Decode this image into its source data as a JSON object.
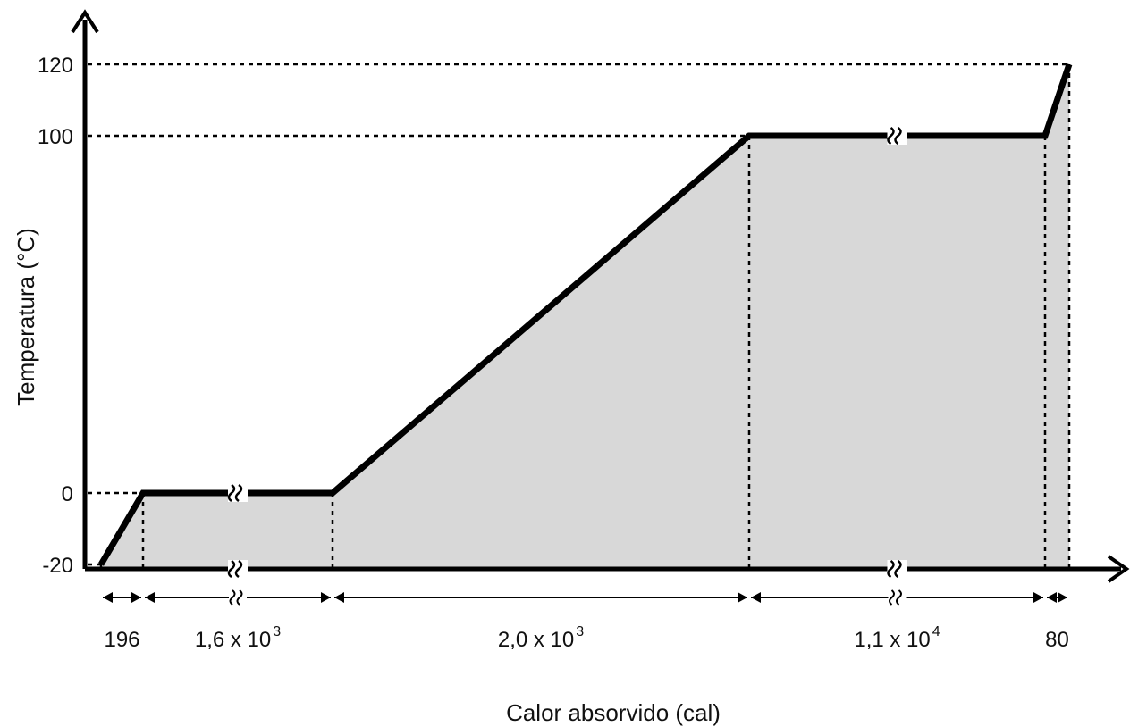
{
  "chart_data": {
    "type": "line",
    "title": "",
    "xlabel": "Calor absorvido (cal)",
    "ylabel": "Temperatura (°C)",
    "ylim": [
      -20,
      120
    ],
    "y_ticks": [
      {
        "value": 120,
        "label": "120"
      },
      {
        "value": 100,
        "label": "100"
      },
      {
        "value": 0,
        "label": "0"
      },
      {
        "value": -20,
        "label": "-20"
      }
    ],
    "segments": [
      {
        "label_base": "196",
        "label_exp": "",
        "heat_cal": 196,
        "t_start": -20,
        "t_end": 0,
        "axis_break": false
      },
      {
        "label_base": "1,6 x 10",
        "label_exp": "3",
        "heat_cal": 1600,
        "t_start": 0,
        "t_end": 0,
        "axis_break": true
      },
      {
        "label_base": "2,0 x 10",
        "label_exp": "3",
        "heat_cal": 2000,
        "t_start": 0,
        "t_end": 100,
        "axis_break": false
      },
      {
        "label_base": "1,1 x 10",
        "label_exp": "4",
        "heat_cal": 11000,
        "t_start": 100,
        "t_end": 100,
        "axis_break": true
      },
      {
        "label_base": "80",
        "label_exp": "",
        "heat_cal": 80,
        "t_start": 100,
        "t_end": 120,
        "axis_break": false
      }
    ],
    "grid": false,
    "legend": "none",
    "fill_under_curve": true,
    "colors": {
      "line": "#000000",
      "fill": "#d8d8d8",
      "axis": "#000000",
      "guide": "#000000"
    }
  }
}
